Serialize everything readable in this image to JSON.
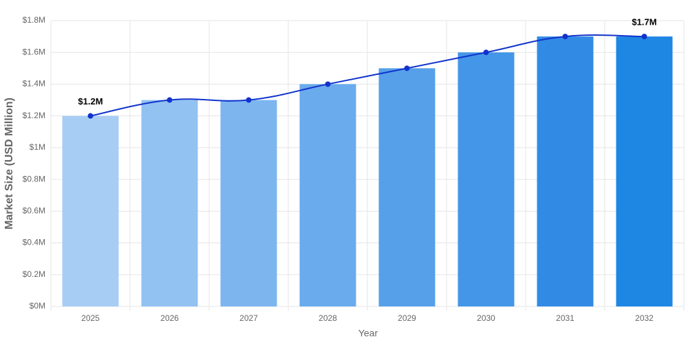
{
  "chart_data": {
    "type": "bar",
    "x_label": "Year",
    "y_label": "Market Size (USD Million)",
    "categories": [
      "2025",
      "2026",
      "2027",
      "2028",
      "2029",
      "2030",
      "2031",
      "2032"
    ],
    "series": [
      {
        "type": "bar",
        "values": [
          1.2,
          1.3,
          1.3,
          1.4,
          1.5,
          1.6,
          1.7,
          1.7
        ],
        "colors": [
          "#a7cdf4",
          "#92c2f2",
          "#7db6ef",
          "#6aabed",
          "#56a0ea",
          "#4496e8",
          "#318be5",
          "#1e86e3"
        ]
      },
      {
        "type": "line",
        "color": "#1133cc",
        "values": [
          1.2,
          1.3,
          1.3,
          1.4,
          1.5,
          1.6,
          1.7,
          1.7
        ],
        "value_labels": [
          "$1.2M",
          null,
          null,
          null,
          null,
          null,
          null,
          "$1.7M"
        ]
      }
    ],
    "ylim": [
      0,
      1.8
    ],
    "yticks": [
      {
        "value": 0,
        "label": "$0M"
      },
      {
        "value": 0.2,
        "label": "$0.2M"
      },
      {
        "value": 0.4,
        "label": "$0.4M"
      },
      {
        "value": 0.6,
        "label": "$0.6M"
      },
      {
        "value": 0.8,
        "label": "$0.8M"
      },
      {
        "value": 1,
        "label": "$1M"
      },
      {
        "value": 1.2,
        "label": "$1.2M"
      },
      {
        "value": 1.4,
        "label": "$1.4M"
      },
      {
        "value": 1.6,
        "label": "$1.6M"
      },
      {
        "value": 1.8,
        "label": "$1.8M"
      }
    ],
    "grid": true
  }
}
